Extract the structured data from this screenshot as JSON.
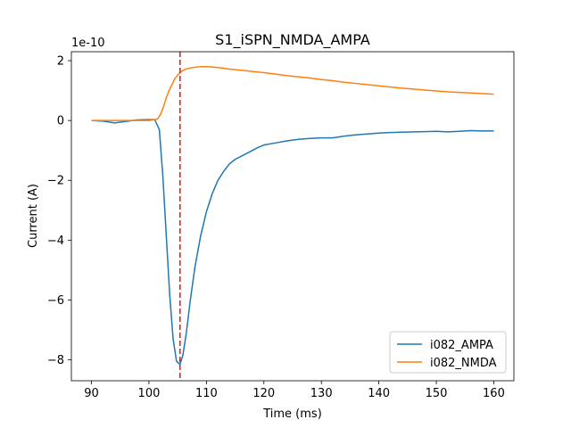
{
  "chart_data": {
    "type": "line",
    "title": "S1_iSPN_NMDA_AMPA",
    "xlabel": "Time (ms)",
    "ylabel": "Current (A)",
    "y_offset_text": "1e-10",
    "xlim": [
      86.5,
      163.5
    ],
    "ylim": [
      -8.7,
      2.3
    ],
    "xticks": [
      90,
      100,
      110,
      120,
      130,
      140,
      150,
      160
    ],
    "yticks": [
      -8,
      -6,
      -4,
      -2,
      0,
      2
    ],
    "ytick_labels": [
      "−8",
      "−6",
      "−4",
      "−2",
      "0",
      "2"
    ],
    "grid": false,
    "legend_position": "lower right",
    "vline": {
      "x": 105.4,
      "color": "#d62728",
      "style": "dashed"
    },
    "series": [
      {
        "name": "i082_AMPA",
        "color": "#1f77b4",
        "x": [
          90,
          92,
          94,
          96,
          98,
          100,
          101,
          101.8,
          102.4,
          103,
          103.6,
          104.2,
          104.8,
          105.4,
          105.9,
          106.5,
          107.2,
          108,
          109,
          110,
          111,
          112,
          113,
          114,
          115,
          116,
          117,
          118,
          119,
          120,
          122,
          124,
          126,
          128,
          130,
          132,
          134,
          136,
          138,
          140,
          142,
          144,
          146,
          148,
          150,
          152,
          154,
          156,
          158,
          160
        ],
        "values": [
          0.0,
          -0.02,
          -0.08,
          -0.03,
          0.02,
          0.03,
          0.03,
          -0.3,
          -1.8,
          -3.8,
          -5.8,
          -7.3,
          -8.05,
          -8.15,
          -7.85,
          -7.1,
          -6.0,
          -4.9,
          -3.85,
          -3.05,
          -2.45,
          -2.0,
          -1.7,
          -1.45,
          -1.3,
          -1.2,
          -1.1,
          -1.0,
          -0.9,
          -0.82,
          -0.75,
          -0.68,
          -0.63,
          -0.6,
          -0.58,
          -0.58,
          -0.52,
          -0.48,
          -0.45,
          -0.42,
          -0.4,
          -0.39,
          -0.38,
          -0.37,
          -0.36,
          -0.38,
          -0.36,
          -0.34,
          -0.35,
          -0.35
        ]
      },
      {
        "name": "i082_NMDA",
        "color": "#ff7f0e",
        "x": [
          90,
          92,
          94,
          96,
          98,
          100,
          101.5,
          102,
          102.5,
          103,
          103.5,
          104,
          104.5,
          105,
          105.5,
          106,
          106.5,
          107,
          108,
          109,
          110,
          111,
          112,
          113,
          114,
          116,
          118,
          120,
          122,
          124,
          126,
          128,
          130,
          132,
          134,
          136,
          138,
          140,
          142,
          144,
          146,
          148,
          150,
          152,
          154,
          156,
          158,
          160
        ],
        "values": [
          0.0,
          0.0,
          0.0,
          0.0,
          0.0,
          0.0,
          0.05,
          0.2,
          0.45,
          0.75,
          1.0,
          1.2,
          1.4,
          1.52,
          1.62,
          1.68,
          1.72,
          1.75,
          1.78,
          1.8,
          1.8,
          1.79,
          1.77,
          1.75,
          1.72,
          1.68,
          1.64,
          1.6,
          1.55,
          1.5,
          1.46,
          1.42,
          1.37,
          1.33,
          1.28,
          1.24,
          1.2,
          1.16,
          1.12,
          1.08,
          1.05,
          1.02,
          0.99,
          0.96,
          0.94,
          0.92,
          0.9,
          0.88
        ]
      }
    ]
  }
}
